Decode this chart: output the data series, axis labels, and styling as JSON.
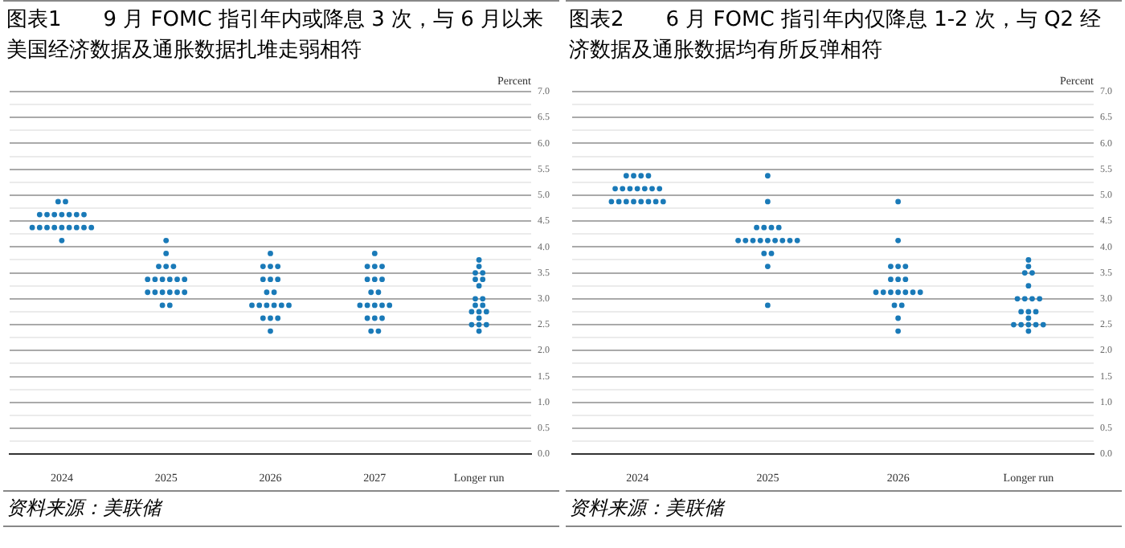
{
  "chart_data": [
    {
      "type": "scatter",
      "title": "图表1　　9 月 FOMC 指引年内或降息 3 次，与 6 月以来美国经济数据及通胀数据扎堆走弱相符",
      "ylabel": "Percent",
      "annotations": [
        "资料来源：美联储"
      ],
      "categories": [
        "2024",
        "2025",
        "2026",
        "2027",
        "Longer run"
      ],
      "marker": "circle",
      "grid": "y",
      "legend": false,
      "ylim": [
        0,
        7
      ],
      "yticks": [
        {
          "value": 0,
          "label": "0.0"
        },
        {
          "value": 0.25,
          "label": null
        },
        {
          "value": 0.5,
          "label": "0.5"
        },
        {
          "value": 0.75,
          "label": null
        },
        {
          "value": 1,
          "label": "1.0"
        },
        {
          "value": 1.25,
          "label": null
        },
        {
          "value": 1.5,
          "label": "1.5"
        },
        {
          "value": 1.75,
          "label": null
        },
        {
          "value": 2,
          "label": "2.0"
        },
        {
          "value": 2.25,
          "label": null
        },
        {
          "value": 2.5,
          "label": "2.5"
        },
        {
          "value": 2.75,
          "label": null
        },
        {
          "value": 3,
          "label": "3.0"
        },
        {
          "value": 3.25,
          "label": null
        },
        {
          "value": 3.5,
          "label": "3.5"
        },
        {
          "value": 3.75,
          "label": null
        },
        {
          "value": 4,
          "label": "4.0"
        },
        {
          "value": 4.25,
          "label": null
        },
        {
          "value": 4.5,
          "label": "4.5"
        },
        {
          "value": 4.75,
          "label": null
        },
        {
          "value": 5,
          "label": "5.0"
        },
        {
          "value": 5.25,
          "label": null
        },
        {
          "value": 5.5,
          "label": "5.5"
        },
        {
          "value": 5.75,
          "label": null
        },
        {
          "value": 6,
          "label": "6.0"
        },
        {
          "value": 6.25,
          "label": null
        },
        {
          "value": 6.5,
          "label": "6.5"
        },
        {
          "value": 6.75,
          "label": null
        },
        {
          "value": 7,
          "label": "7.0"
        }
      ],
      "series": [
        {
          "color": "#1a7ab8",
          "values": [
            4.875,
            4.125,
            3.875,
            3.875,
            3.75
          ]
        },
        {
          "color": "#1a7ab8",
          "values": [
            4.875,
            3.875,
            3.625,
            3.625,
            3.625
          ]
        },
        {
          "color": "#1a7ab8",
          "values": [
            4.625,
            3.625,
            3.625,
            3.625,
            3.5
          ]
        },
        {
          "color": "#1a7ab8",
          "values": [
            4.625,
            3.625,
            3.625,
            3.625,
            3.5
          ]
        },
        {
          "color": "#1a7ab8",
          "values": [
            4.625,
            3.625,
            3.375,
            3.375,
            3.375
          ]
        },
        {
          "color": "#1a7ab8",
          "values": [
            4.625,
            3.375,
            3.375,
            3.375,
            3.375
          ]
        },
        {
          "color": "#1a7ab8",
          "values": [
            4.625,
            3.375,
            3.375,
            3.375,
            3.25
          ]
        },
        {
          "color": "#1a7ab8",
          "values": [
            4.625,
            3.375,
            3.125,
            3.125,
            3.0
          ]
        },
        {
          "color": "#1a7ab8",
          "values": [
            4.625,
            3.375,
            3.125,
            3.125,
            3.0
          ]
        },
        {
          "color": "#1a7ab8",
          "values": [
            4.375,
            3.375,
            2.875,
            2.875,
            2.875
          ]
        },
        {
          "color": "#1a7ab8",
          "values": [
            4.375,
            3.375,
            2.875,
            2.875,
            2.875
          ]
        },
        {
          "color": "#1a7ab8",
          "values": [
            4.375,
            3.125,
            2.875,
            2.875,
            2.75
          ]
        },
        {
          "color": "#1a7ab8",
          "values": [
            4.375,
            3.125,
            2.875,
            2.875,
            2.75
          ]
        },
        {
          "color": "#1a7ab8",
          "values": [
            4.375,
            3.125,
            2.875,
            2.875,
            2.75
          ]
        },
        {
          "color": "#1a7ab8",
          "values": [
            4.375,
            3.125,
            2.875,
            2.625,
            2.625
          ]
        },
        {
          "color": "#1a7ab8",
          "values": [
            4.375,
            3.125,
            2.625,
            2.625,
            2.5
          ]
        },
        {
          "color": "#1a7ab8",
          "values": [
            4.375,
            3.125,
            2.625,
            2.625,
            2.5
          ]
        },
        {
          "color": "#1a7ab8",
          "values": [
            4.375,
            2.875,
            2.625,
            2.375,
            2.5
          ]
        },
        {
          "color": "#1a7ab8",
          "values": [
            4.125,
            2.875,
            2.375,
            2.375,
            2.375
          ]
        }
      ]
    },
    {
      "type": "scatter",
      "title": "图表2　　6 月 FOMC 指引年内仅降息 1-2 次，与 Q2 经济数据及通胀数据均有所反弹相符",
      "ylabel": "Percent",
      "annotations": [
        "资料来源：美联储"
      ],
      "categories": [
        "2024",
        "2025",
        "2026",
        "Longer run"
      ],
      "marker": "circle",
      "grid": "y",
      "legend": false,
      "ylim": [
        0,
        7
      ],
      "yticks": [
        {
          "value": 0,
          "label": "0.0"
        },
        {
          "value": 0.25,
          "label": null
        },
        {
          "value": 0.5,
          "label": "0.5"
        },
        {
          "value": 0.75,
          "label": null
        },
        {
          "value": 1,
          "label": "1.0"
        },
        {
          "value": 1.25,
          "label": null
        },
        {
          "value": 1.5,
          "label": "1.5"
        },
        {
          "value": 1.75,
          "label": null
        },
        {
          "value": 2,
          "label": "2.0"
        },
        {
          "value": 2.25,
          "label": null
        },
        {
          "value": 2.5,
          "label": "2.5"
        },
        {
          "value": 2.75,
          "label": null
        },
        {
          "value": 3,
          "label": "3.0"
        },
        {
          "value": 3.25,
          "label": null
        },
        {
          "value": 3.5,
          "label": "3.5"
        },
        {
          "value": 3.75,
          "label": null
        },
        {
          "value": 4,
          "label": "4.0"
        },
        {
          "value": 4.25,
          "label": null
        },
        {
          "value": 4.5,
          "label": "4.5"
        },
        {
          "value": 4.75,
          "label": null
        },
        {
          "value": 5,
          "label": "5.0"
        },
        {
          "value": 5.25,
          "label": null
        },
        {
          "value": 5.5,
          "label": "5.5"
        },
        {
          "value": 5.75,
          "label": null
        },
        {
          "value": 6,
          "label": "6.0"
        },
        {
          "value": 6.25,
          "label": null
        },
        {
          "value": 6.5,
          "label": "6.5"
        },
        {
          "value": 6.75,
          "label": null
        },
        {
          "value": 7,
          "label": "7.0"
        }
      ],
      "series": [
        {
          "color": "#1a7ab8",
          "values": [
            5.375,
            5.375,
            4.875,
            3.75
          ]
        },
        {
          "color": "#1a7ab8",
          "values": [
            5.375,
            4.875,
            4.125,
            3.625
          ]
        },
        {
          "color": "#1a7ab8",
          "values": [
            5.375,
            4.375,
            3.625,
            3.5
          ]
        },
        {
          "color": "#1a7ab8",
          "values": [
            5.375,
            4.375,
            3.625,
            3.5
          ]
        },
        {
          "color": "#1a7ab8",
          "values": [
            5.125,
            4.375,
            3.625,
            3.25
          ]
        },
        {
          "color": "#1a7ab8",
          "values": [
            5.125,
            4.375,
            3.375,
            3.0
          ]
        },
        {
          "color": "#1a7ab8",
          "values": [
            5.125,
            4.125,
            3.375,
            3.0
          ]
        },
        {
          "color": "#1a7ab8",
          "values": [
            5.125,
            4.125,
            3.375,
            3.0
          ]
        },
        {
          "color": "#1a7ab8",
          "values": [
            5.125,
            4.125,
            3.125,
            3.0
          ]
        },
        {
          "color": "#1a7ab8",
          "values": [
            5.125,
            4.125,
            3.125,
            2.75
          ]
        },
        {
          "color": "#1a7ab8",
          "values": [
            5.125,
            4.125,
            3.125,
            2.75
          ]
        },
        {
          "color": "#1a7ab8",
          "values": [
            4.875,
            4.125,
            3.125,
            2.75
          ]
        },
        {
          "color": "#1a7ab8",
          "values": [
            4.875,
            4.125,
            3.125,
            2.625
          ]
        },
        {
          "color": "#1a7ab8",
          "values": [
            4.875,
            4.125,
            3.125,
            2.5
          ]
        },
        {
          "color": "#1a7ab8",
          "values": [
            4.875,
            4.125,
            3.125,
            2.5
          ]
        },
        {
          "color": "#1a7ab8",
          "values": [
            4.875,
            3.875,
            2.875,
            2.5
          ]
        },
        {
          "color": "#1a7ab8",
          "values": [
            4.875,
            3.875,
            2.875,
            2.5
          ]
        },
        {
          "color": "#1a7ab8",
          "values": [
            4.875,
            3.625,
            2.625,
            2.5
          ]
        },
        {
          "color": "#1a7ab8",
          "values": [
            4.875,
            2.875,
            2.375,
            2.375
          ]
        }
      ]
    }
  ]
}
